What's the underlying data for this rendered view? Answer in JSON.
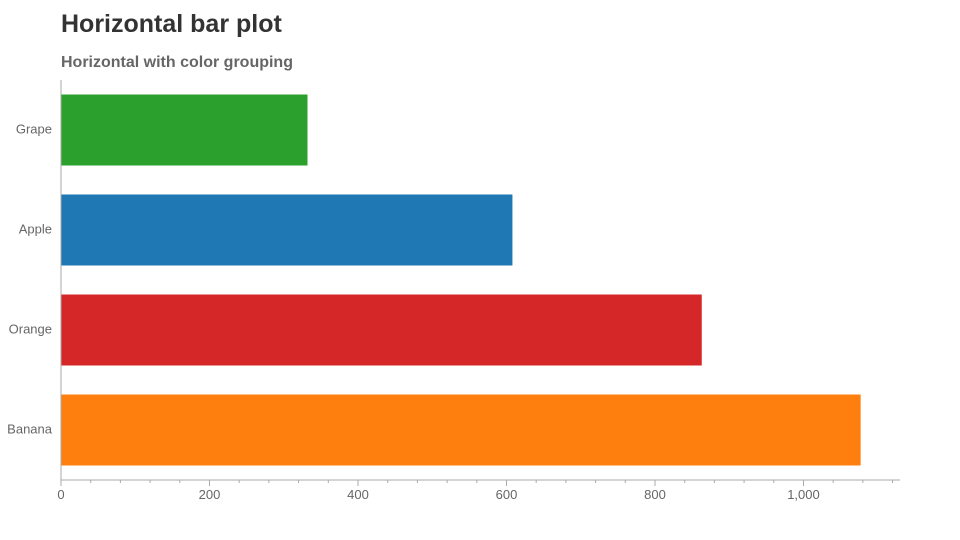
{
  "page": {
    "title": "Horizontal bar plot"
  },
  "chart_data": {
    "type": "bar",
    "orientation": "horizontal",
    "title": "",
    "subtitle": "Horizontal with color grouping",
    "xlabel": "",
    "ylabel": "",
    "categories": [
      "Grape",
      "Apple",
      "Orange",
      "Banana"
    ],
    "values": [
      332,
      608,
      863,
      1077
    ],
    "colors": [
      "#2ca02c",
      "#1f77b4",
      "#d62728",
      "#ff7f0e"
    ],
    "xlim": [
      0,
      1130
    ],
    "xticks": [
      0,
      200,
      400,
      600,
      800,
      1000
    ],
    "xtick_labels": [
      "0",
      "200",
      "400",
      "600",
      "800",
      "1,000"
    ],
    "grid": false,
    "legend": "none"
  }
}
